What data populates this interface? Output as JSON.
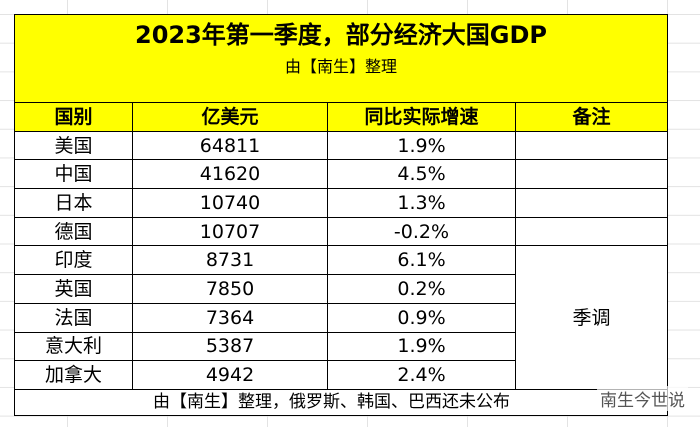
{
  "title": "2023年第一季度，部分经济大国GDP",
  "subtitle": "由【南生】整理",
  "table": {
    "header": [
      "国别",
      "亿美元",
      "同比实际增速",
      "备注"
    ],
    "rows": [
      [
        "美国",
        "64811",
        "1.9%"
      ],
      [
        "中国",
        "41620",
        "4.5%"
      ],
      [
        "日本",
        "10740",
        "1.3%"
      ],
      [
        "德国",
        "10707",
        "-0.2%"
      ],
      [
        "印度",
        "8731",
        "6.1%"
      ],
      [
        "英国",
        "7850",
        "0.2%"
      ],
      [
        "法国",
        "7364",
        "0.9%"
      ],
      [
        "意大利",
        "5387",
        "1.9%"
      ],
      [
        "加拿大",
        "4942",
        "2.4%"
      ]
    ],
    "remark": "季调"
  },
  "footer": "由【南生】整理，俄罗斯、韩国、巴西还未公布",
  "watermark": "南生今世说"
}
